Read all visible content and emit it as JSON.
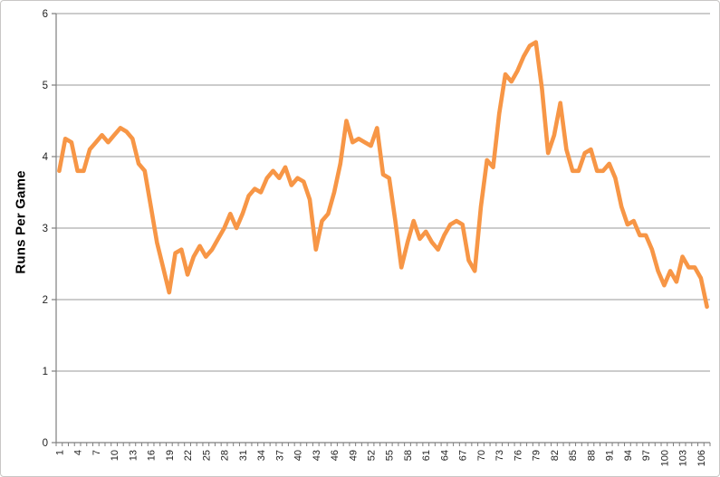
{
  "chart_data": {
    "type": "line",
    "title": "",
    "xlabel": "",
    "ylabel": "Runs Per Game",
    "ylim": [
      0,
      6
    ],
    "y_ticks": [
      0,
      1,
      2,
      3,
      4,
      5,
      6
    ],
    "grid": "horizontal",
    "legend": "none",
    "x_tick_step": 3,
    "x_tick_labels": [
      "1",
      "4",
      "7",
      "10",
      "13",
      "16",
      "19",
      "22",
      "25",
      "28",
      "31",
      "34",
      "37",
      "40",
      "43",
      "46",
      "49",
      "52",
      "55",
      "58",
      "61",
      "64",
      "67",
      "70",
      "73",
      "76",
      "79",
      "82",
      "85",
      "88",
      "91",
      "94",
      "97",
      "100",
      "103",
      "106"
    ],
    "n_points": 107,
    "series": [
      {
        "name": "Runs Per Game",
        "color": "#F79646",
        "values": [
          3.8,
          4.25,
          4.2,
          3.8,
          3.8,
          4.1,
          4.2,
          4.3,
          4.2,
          4.3,
          4.4,
          4.35,
          4.25,
          3.9,
          3.8,
          3.3,
          2.8,
          2.45,
          2.1,
          2.65,
          2.7,
          2.35,
          2.6,
          2.75,
          2.6,
          2.7,
          2.85,
          3.0,
          3.2,
          3.0,
          3.2,
          3.45,
          3.55,
          3.5,
          3.7,
          3.8,
          3.7,
          3.85,
          3.6,
          3.7,
          3.65,
          3.4,
          2.7,
          3.1,
          3.2,
          3.5,
          3.9,
          4.5,
          4.2,
          4.25,
          4.2,
          4.15,
          4.4,
          3.75,
          3.7,
          3.1,
          2.45,
          2.8,
          3.1,
          2.85,
          2.95,
          2.8,
          2.7,
          2.9,
          3.05,
          3.1,
          3.05,
          2.55,
          2.4,
          3.3,
          3.95,
          3.85,
          4.6,
          5.15,
          5.05,
          5.2,
          5.4,
          5.55,
          5.6,
          4.95,
          4.05,
          4.3,
          4.75,
          4.1,
          3.8,
          3.8,
          4.05,
          4.1,
          3.8,
          3.8,
          3.9,
          3.7,
          3.3,
          3.05,
          3.1,
          2.9,
          2.9,
          2.7,
          2.4,
          2.2,
          2.4,
          2.25,
          2.6,
          2.45,
          2.45,
          2.3,
          1.9
        ]
      }
    ],
    "colors": {
      "line": "#F79646",
      "gridline": "#9a9a9a",
      "axis": "#7f7f7f",
      "tick_label": "#1f1f1f",
      "axis_title": "#000000",
      "background": "#ffffff",
      "border": "#c9c7c5"
    }
  }
}
